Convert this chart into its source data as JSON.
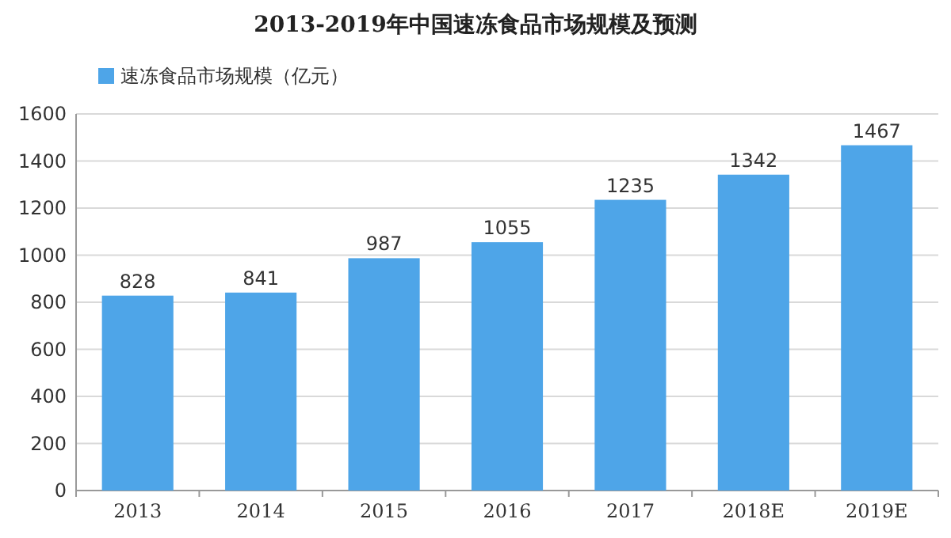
{
  "chart_data": {
    "type": "bar",
    "title": "2013-2019年中国速冻食品市场规模及预测",
    "categories": [
      "2013",
      "2014",
      "2015",
      "2016",
      "2017",
      "2018E",
      "2019E"
    ],
    "series": [
      {
        "name": "速冻食品市场规模（亿元）",
        "color": "#4ea5e8",
        "values": [
          828,
          841,
          987,
          1055,
          1235,
          1342,
          1467
        ]
      }
    ],
    "ylim": [
      0,
      1600
    ],
    "yticks": [
      0,
      200,
      400,
      600,
      800,
      1000,
      1200,
      1400,
      1600
    ],
    "grid": "y",
    "legend": "top left",
    "data_labels": true
  }
}
